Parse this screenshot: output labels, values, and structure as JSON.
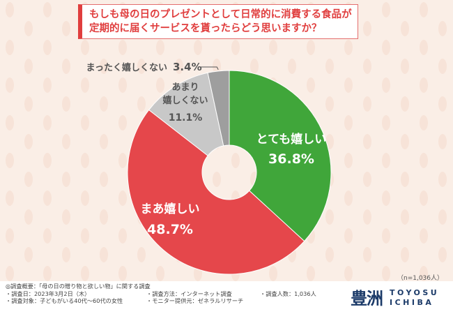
{
  "title": {
    "line1": "もしも母の日のプレゼントとして日常的に消費する食品が",
    "line2": "定期的に届くサービスを貰ったらどう思いますか？"
  },
  "sample_note": "（n=1,036人）",
  "survey": {
    "overview": "◎調査概要：「母の日の贈り物と欲しい物」に関する調査",
    "date": "・調査日：2023年3月2日（木）",
    "method": "・調査方法：インターネット調査",
    "count": "・調査人数：1,036人",
    "target": "・調査対象：子どもがいる40代～60代の女性",
    "provider": "・モニター提供元：ゼネラルリサーチ"
  },
  "logo": {
    "kanji": "豊洲",
    "line1": "TOYOSU",
    "line2": "ICHIBA"
  },
  "colors": {
    "background": "#faeee6",
    "title_accent": "#e03e3e"
  },
  "chart_data": {
    "type": "pie",
    "variant": "donut",
    "unit": "%",
    "slices": [
      {
        "name": "とても嬉しい",
        "value": 36.8,
        "label": "36.8%",
        "color": "#40a63a"
      },
      {
        "name": "まあ嬉しい",
        "value": 48.7,
        "label": "48.7%",
        "color": "#e5474b"
      },
      {
        "name": "あまり嬉しくない",
        "value": 11.1,
        "label": "11.1%",
        "color": "#c8c8c8"
      },
      {
        "name": "まったく嬉しくない",
        "value": 3.4,
        "label": "3.4%",
        "color": "#9e9e9e"
      }
    ]
  }
}
